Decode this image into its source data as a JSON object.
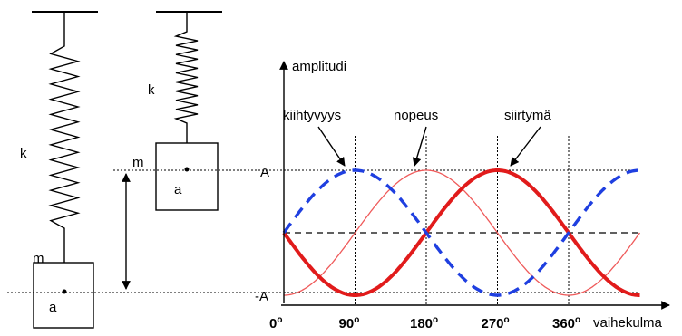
{
  "labels": {
    "k_left": "k",
    "k_mid": "k",
    "m_left": "m",
    "m_mid": "m",
    "a_left": "a",
    "a_mid": "a",
    "amp_pos": "A",
    "amp_neg": "-A",
    "y_axis": "amplitudi",
    "x_axis": "vaihekulma",
    "curve_acc": "kiihtyvyys",
    "curve_vel": "nopeus",
    "curve_disp": "siirtymä"
  },
  "ticks": [
    {
      "label": "0",
      "deg": 0
    },
    {
      "label": "90",
      "deg": 90
    },
    {
      "label": "180",
      "deg": 180
    },
    {
      "label": "270",
      "deg": 270
    },
    {
      "label": "360",
      "deg": 360
    }
  ],
  "degree_mark": "o",
  "colors": {
    "displacement": "#e11b1b",
    "velocity": "#ef5a5a",
    "acceleration": "#1f3fe0",
    "ink": "#000000"
  },
  "chart_data": {
    "type": "line",
    "x_range_deg": [
      0,
      450
    ],
    "y_range": [
      -1,
      1
    ],
    "xlabel": "vaihekulma",
    "ylabel": "amplitudi",
    "ytick_labels": [
      "A",
      "-A"
    ],
    "xtick_labels": [
      "0",
      "90",
      "180",
      "270",
      "360"
    ],
    "series": [
      {
        "name": "siirtymä",
        "function": "-sin(x)",
        "style": "solid-thick"
      },
      {
        "name": "nopeus",
        "function": "-cos(x)",
        "style": "solid-thin"
      },
      {
        "name": "kiihtyvyys",
        "function": "sin(x)",
        "style": "dashed-thick"
      }
    ]
  }
}
